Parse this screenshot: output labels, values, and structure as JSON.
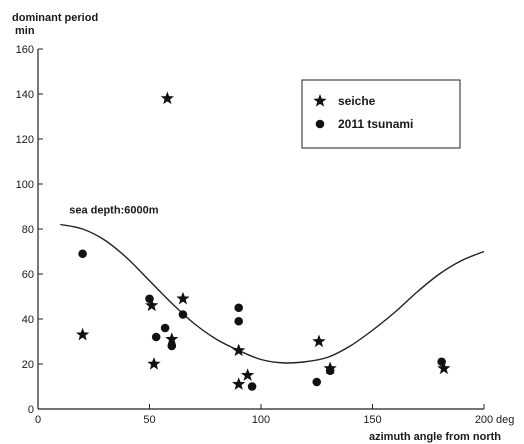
{
  "chart_data": {
    "type": "scatter",
    "ylabel_line1": "dominant period",
    "ylabel_line2": "min",
    "xlabel": "azimuth angle from north",
    "x_unit": "deg",
    "xlim": [
      0,
      200
    ],
    "ylim": [
      0,
      160
    ],
    "x_ticks": [
      0,
      50,
      100,
      150,
      200
    ],
    "y_ticks": [
      0,
      20,
      40,
      60,
      80,
      100,
      120,
      140,
      160
    ],
    "legend_position": "top-right",
    "series": [
      {
        "name": "seiche",
        "marker": "star",
        "points": [
          [
            20,
            33
          ],
          [
            51,
            46
          ],
          [
            52,
            20
          ],
          [
            58,
            138
          ],
          [
            60,
            31
          ],
          [
            65,
            49
          ],
          [
            90,
            26
          ],
          [
            90,
            11
          ],
          [
            94,
            15
          ],
          [
            126,
            30
          ],
          [
            131,
            18
          ],
          [
            182,
            18
          ]
        ]
      },
      {
        "name": "2011 tsunami",
        "marker": "circle",
        "points": [
          [
            20,
            69
          ],
          [
            50,
            49
          ],
          [
            53,
            32
          ],
          [
            57,
            36
          ],
          [
            60,
            28
          ],
          [
            65,
            42
          ],
          [
            90,
            45
          ],
          [
            90,
            39
          ],
          [
            96,
            10
          ],
          [
            125,
            12
          ],
          [
            131,
            17
          ],
          [
            181,
            21
          ]
        ]
      }
    ],
    "curve": {
      "label": "sea depth:6000m",
      "points": [
        [
          10,
          82
        ],
        [
          20,
          80
        ],
        [
          30,
          75
        ],
        [
          40,
          67
        ],
        [
          50,
          57
        ],
        [
          60,
          47
        ],
        [
          70,
          38
        ],
        [
          80,
          31
        ],
        [
          90,
          26
        ],
        [
          100,
          22
        ],
        [
          110,
          20.5
        ],
        [
          120,
          21
        ],
        [
          130,
          23
        ],
        [
          140,
          28
        ],
        [
          150,
          35
        ],
        [
          160,
          43
        ],
        [
          170,
          52
        ],
        [
          180,
          60
        ],
        [
          190,
          66
        ],
        [
          200,
          70
        ]
      ]
    }
  }
}
